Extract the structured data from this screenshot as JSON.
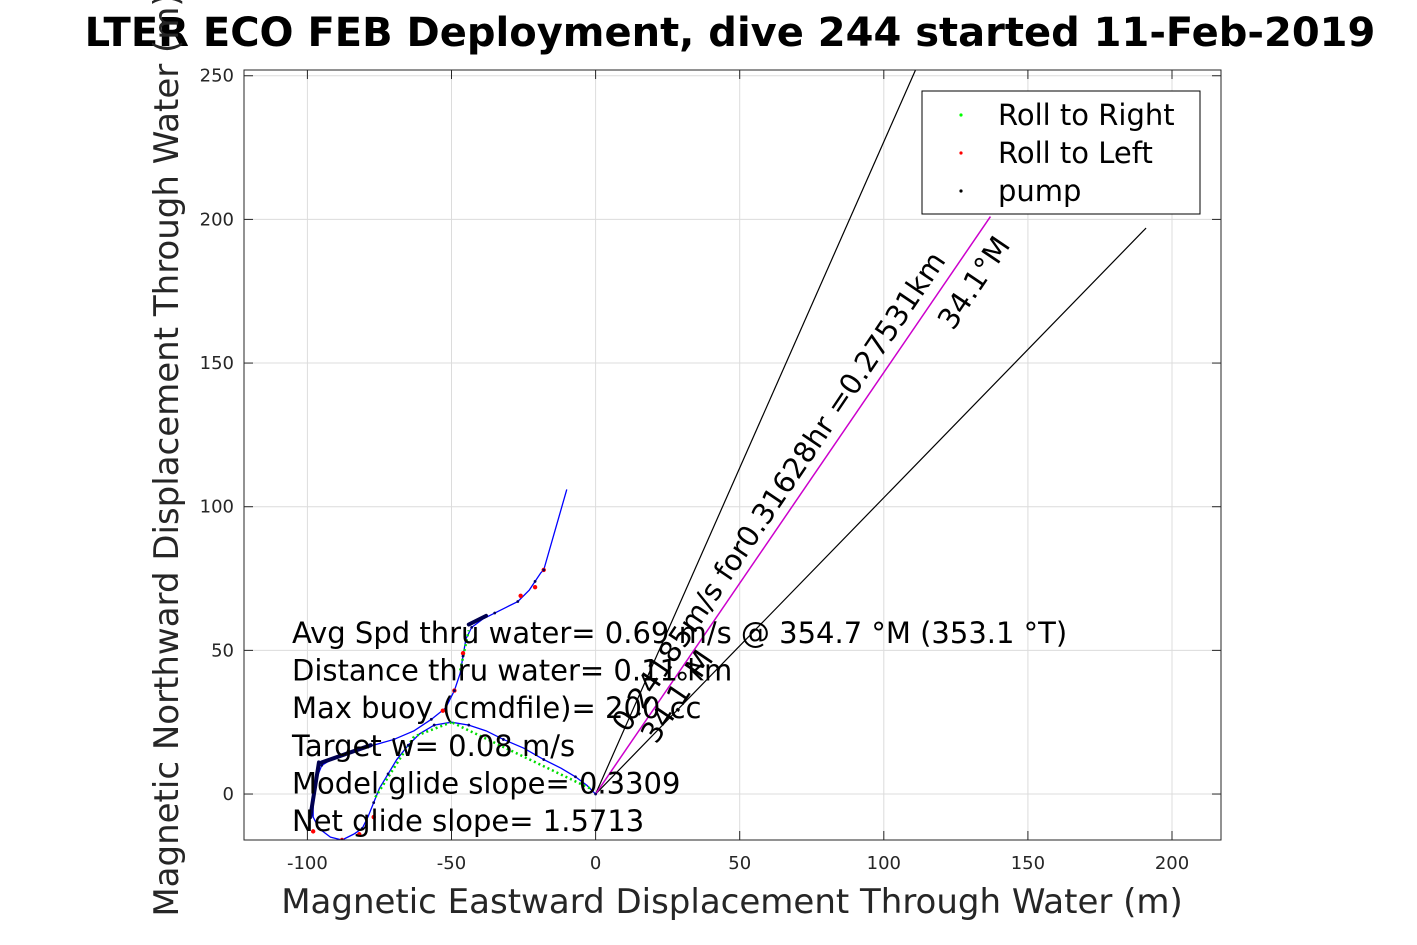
{
  "chart_data": {
    "type": "line",
    "title": "LTER ECO FEB Deployment, dive 244 started 11-Feb-2019",
    "xlabel": "Magnetic Eastward Displacement Through Water (m)",
    "ylabel": "Magnetic Northward Displacement Through Water (m)",
    "xlim": [
      -122,
      217
    ],
    "ylim": [
      -16,
      252
    ],
    "xticks": [
      -100,
      -50,
      0,
      50,
      100,
      150,
      200
    ],
    "yticks": [
      0,
      50,
      100,
      150,
      200,
      250
    ],
    "grid": true,
    "legend": {
      "location": "top-right",
      "entries": [
        {
          "label": "Roll to Right",
          "color": "#00ff00"
        },
        {
          "label": "Roll to Left",
          "color": "#ff0000"
        },
        {
          "label": "pump",
          "color": "#000000"
        }
      ]
    },
    "track": {
      "color": "#0000ff",
      "points": [
        [
          0,
          0
        ],
        [
          -3,
          3
        ],
        [
          -7,
          6
        ],
        [
          -12,
          9
        ],
        [
          -18,
          12
        ],
        [
          -25,
          16
        ],
        [
          -32,
          19
        ],
        [
          -38,
          22
        ],
        [
          -44,
          24
        ],
        [
          -50,
          25
        ],
        [
          -56,
          24
        ],
        [
          -61,
          21
        ],
        [
          -65,
          17
        ],
        [
          -69,
          12
        ],
        [
          -72,
          7
        ],
        [
          -75,
          2
        ],
        [
          -77,
          -3
        ],
        [
          -79,
          -8
        ],
        [
          -81,
          -12
        ],
        [
          -84,
          -14
        ],
        [
          -88,
          -16
        ],
        [
          -92,
          -15
        ],
        [
          -96,
          -12
        ],
        [
          -98,
          -8
        ],
        [
          -98,
          -2
        ],
        [
          -97,
          5
        ],
        [
          -95,
          10
        ],
        [
          -90,
          13
        ],
        [
          -84,
          15
        ],
        [
          -77,
          17
        ],
        [
          -70,
          19
        ],
        [
          -63,
          22
        ],
        [
          -57,
          26
        ],
        [
          -52,
          30
        ],
        [
          -49,
          36
        ],
        [
          -47,
          42
        ],
        [
          -46,
          48
        ],
        [
          -45,
          54
        ],
        [
          -43,
          58
        ],
        [
          -39,
          61
        ],
        [
          -35,
          63
        ],
        [
          -31,
          65
        ],
        [
          -27,
          67
        ],
        [
          -23,
          71
        ],
        [
          -21,
          74
        ],
        [
          -19,
          77
        ],
        [
          -18,
          78
        ],
        [
          -10,
          106
        ]
      ]
    },
    "pump_segments": [
      [
        [
          -99,
          -8
        ],
        [
          -96,
          11
        ]
      ],
      [
        [
          -95,
          11
        ],
        [
          -78,
          17
        ]
      ],
      [
        [
          -44,
          59
        ],
        [
          -38,
          62
        ]
      ]
    ],
    "roll_right_segments": [
      [
        [
          -2,
          2
        ],
        [
          -50,
          25
        ]
      ],
      [
        [
          -50,
          25
        ],
        [
          -63,
          20
        ]
      ],
      [
        [
          -63,
          20
        ],
        [
          -77,
          -2
        ]
      ],
      [
        [
          -47,
          43
        ],
        [
          -44,
          57
        ]
      ]
    ],
    "roll_left_points": [
      [
        -98,
        -13
      ],
      [
        -88,
        -16
      ],
      [
        -82,
        -14
      ],
      [
        -77,
        -8
      ],
      [
        -53,
        29
      ],
      [
        -49,
        36
      ],
      [
        -46,
        49
      ],
      [
        -26,
        69
      ],
      [
        -21,
        72
      ],
      [
        -18,
        78
      ]
    ],
    "heading_line": {
      "from": [
        0,
        0
      ],
      "to": [
        137,
        201
      ],
      "color": "#cc00cc"
    },
    "bounding_lines": [
      {
        "from": [
          0,
          0
        ],
        "to": [
          111,
          252
        ]
      },
      {
        "from": [
          0,
          0
        ],
        "to": [
          191,
          197
        ]
      }
    ],
    "rotated_labels": [
      {
        "text": "0.24185m/s for0.31628hr =0.27531km",
        "anchor": [
          11,
          21
        ],
        "angle_deg": -56
      },
      {
        "text": "34.1°M",
        "anchor": [
          124,
          161
        ],
        "angle_deg": -56
      },
      {
        "text": "34.1°M",
        "anchor": [
          21,
          17
        ],
        "angle_deg": -56
      }
    ],
    "annotations": [
      "Avg Spd thru water=  0.69 m/s @ 354.7 °M (353.1 °T)",
      "Distance thru water=  0.11 km",
      "Max buoy (cmdfile)= 200 cc",
      "Target w= 0.08 m/s",
      "Model glide slope= 0.3309",
      "Net glide slope= 1.5713"
    ]
  }
}
